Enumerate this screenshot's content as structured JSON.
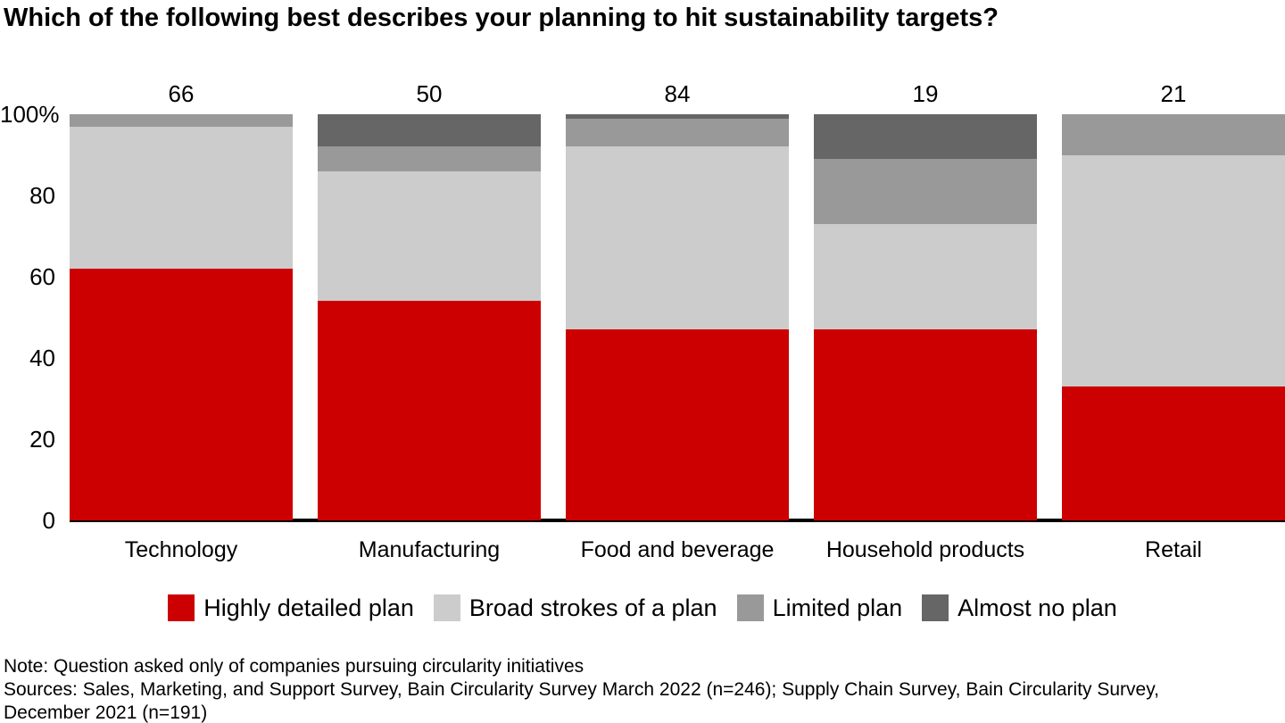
{
  "page": {
    "background": "#ffffff",
    "text_color": "#000000"
  },
  "chart_data": {
    "type": "bar",
    "variant": "stacked-100-percent-column",
    "title": "Which of the following best describes your planning to hit sustainability targets?",
    "categories": [
      "Technology",
      "Manufacturing",
      "Food and beverage",
      "Household products",
      "Retail"
    ],
    "bar_top_labels": [
      "66",
      "50",
      "84",
      "19",
      "21"
    ],
    "series": [
      {
        "name": "Highly detailed plan",
        "color": "#cc0000",
        "values": [
          62,
          54,
          47,
          47,
          33
        ]
      },
      {
        "name": "Broad strokes of a plan",
        "color": "#cccccc",
        "values": [
          35,
          32,
          45,
          26,
          57
        ]
      },
      {
        "name": "Limited plan",
        "color": "#999999",
        "values": [
          3,
          6,
          7,
          16,
          10
        ]
      },
      {
        "name": "Almost no plan",
        "color": "#666666",
        "values": [
          0,
          8,
          1,
          11,
          0
        ]
      }
    ],
    "ylim": [
      0,
      100
    ],
    "y_tick_values": [
      100,
      80,
      60,
      40,
      20,
      0
    ],
    "y_tick_labels": [
      "100%",
      "80",
      "60",
      "40",
      "20",
      "0"
    ],
    "legend_position": "bottom",
    "grid": false,
    "axis_line_color": "#000000"
  },
  "footer": {
    "lines": [
      "Note: Question asked only of companies pursuing circularity initiatives",
      "Sources: Sales, Marketing, and Support Survey, Bain Circularity Survey March 2022 (n=246); Supply Chain Survey, Bain Circularity Survey,",
      "December 2021 (n=191)"
    ]
  }
}
